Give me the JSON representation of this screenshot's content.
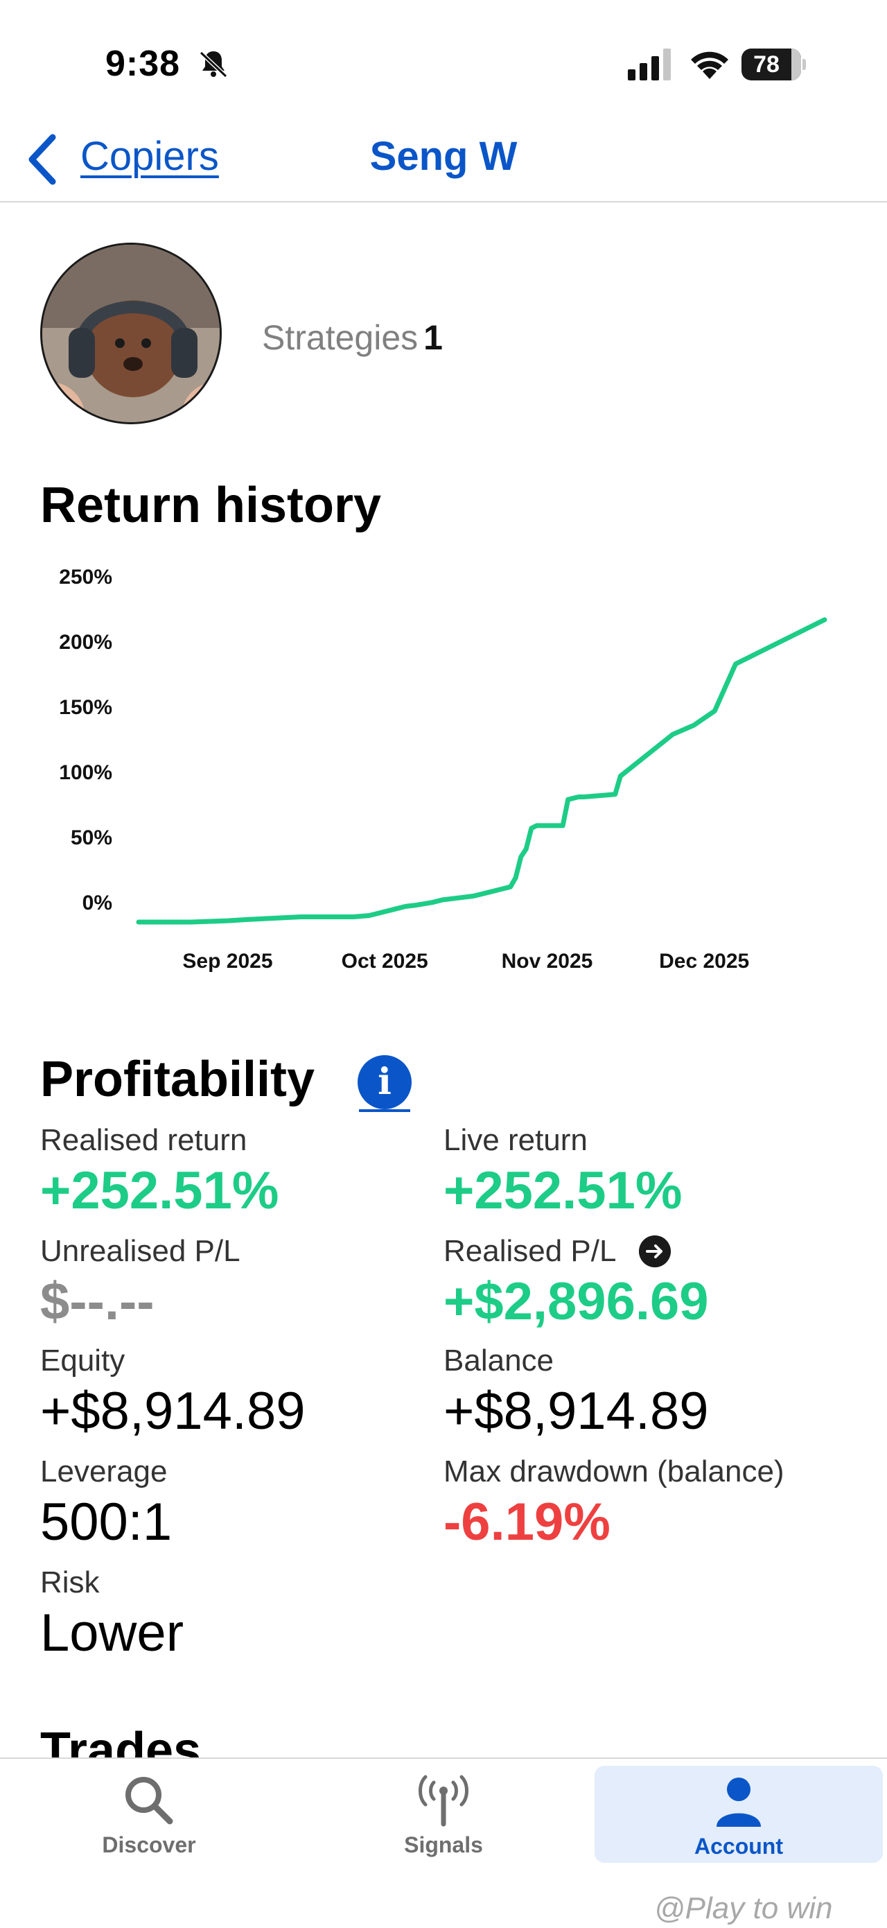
{
  "status_bar": {
    "time": "9:38",
    "battery": "78",
    "icons": [
      "bell-slash-icon",
      "cellular-signal-icon",
      "wifi-icon",
      "battery-icon"
    ]
  },
  "nav": {
    "back_label": "Copiers",
    "title": "Seng W",
    "back_icon": "chevron-left-icon"
  },
  "profile": {
    "strategies_label": "Strategies",
    "strategies_count": "1"
  },
  "return_history": {
    "title": "Return history"
  },
  "chart_data": {
    "type": "line",
    "title": "Return history",
    "y_tick_labels": [
      "250%",
      "200%",
      "150%",
      "100%",
      "50%",
      "0%"
    ],
    "y_ticks": [
      250,
      200,
      150,
      100,
      50,
      0
    ],
    "x_tick_labels": [
      "Sep 2025",
      "Oct 2025",
      "Nov 2025",
      "Dec 2025"
    ],
    "x_ticks": [
      "2025-09-01",
      "2025-10-01",
      "2025-11-01",
      "2025-12-01"
    ],
    "xlim": [
      "2025-08-15",
      "2025-12-24"
    ],
    "ylim": [
      -16,
      250
    ],
    "grid": false,
    "color": "#1dcc86",
    "series": [
      {
        "x": [
          "2025-08-15",
          "2025-08-25",
          "2025-09-01",
          "2025-09-05",
          "2025-09-10",
          "2025-09-15",
          "2025-09-18",
          "2025-09-25",
          "2025-09-28",
          "2025-10-01",
          "2025-10-03",
          "2025-10-05",
          "2025-10-07",
          "2025-10-10",
          "2025-10-12",
          "2025-10-16",
          "2025-10-18",
          "2025-10-21",
          "2025-10-23",
          "2025-10-25",
          "2025-10-26",
          "2025-10-27",
          "2025-10-28",
          "2025-10-29",
          "2025-10-30",
          "2025-11-04",
          "2025-11-05",
          "2025-11-07",
          "2025-11-08",
          "2025-11-14",
          "2025-11-15",
          "2025-11-25",
          "2025-11-29",
          "2025-12-03",
          "2025-12-07",
          "2025-12-24"
        ],
        "y": [
          -16,
          -16,
          -15,
          -14,
          -13,
          -12,
          -12,
          -12,
          -11,
          -8,
          -6,
          -4,
          -3,
          -1,
          1,
          3,
          4,
          7,
          9,
          11,
          18,
          34,
          40,
          56,
          58,
          58,
          78,
          80,
          80,
          82,
          96,
          128,
          135,
          146,
          182,
          216
        ]
      }
    ]
  },
  "profitability": {
    "title": "Profitability",
    "metrics": {
      "realised_return": {
        "label": "Realised return",
        "value": "+252.51%"
      },
      "live_return": {
        "label": "Live return",
        "value": "+252.51%"
      },
      "unrealised_pl": {
        "label": "Unrealised P/L",
        "value": "$--.--"
      },
      "realised_pl": {
        "label": "Realised P/L",
        "value": "+$2,896.69"
      },
      "equity": {
        "label": "Equity",
        "value": "+$8,914.89"
      },
      "balance": {
        "label": "Balance",
        "value": "+$8,914.89"
      },
      "leverage": {
        "label": "Leverage",
        "value": "500:1"
      },
      "max_drawdown": {
        "label": "Max drawdown (balance)",
        "value": "-6.19%"
      },
      "risk": {
        "label": "Risk",
        "value": "Lower"
      }
    }
  },
  "trades": {
    "title": "Trades"
  },
  "tab_bar": {
    "tabs": [
      {
        "label": "Discover",
        "icon": "search-icon"
      },
      {
        "label": "Signals",
        "icon": "antenna-icon"
      },
      {
        "label": "Account",
        "icon": "person-icon",
        "active": true
      }
    ]
  },
  "watermark": "@Play to win",
  "colors": {
    "accent": "#0a56c8",
    "positive": "#1dcc86",
    "negative": "#ee4040"
  }
}
